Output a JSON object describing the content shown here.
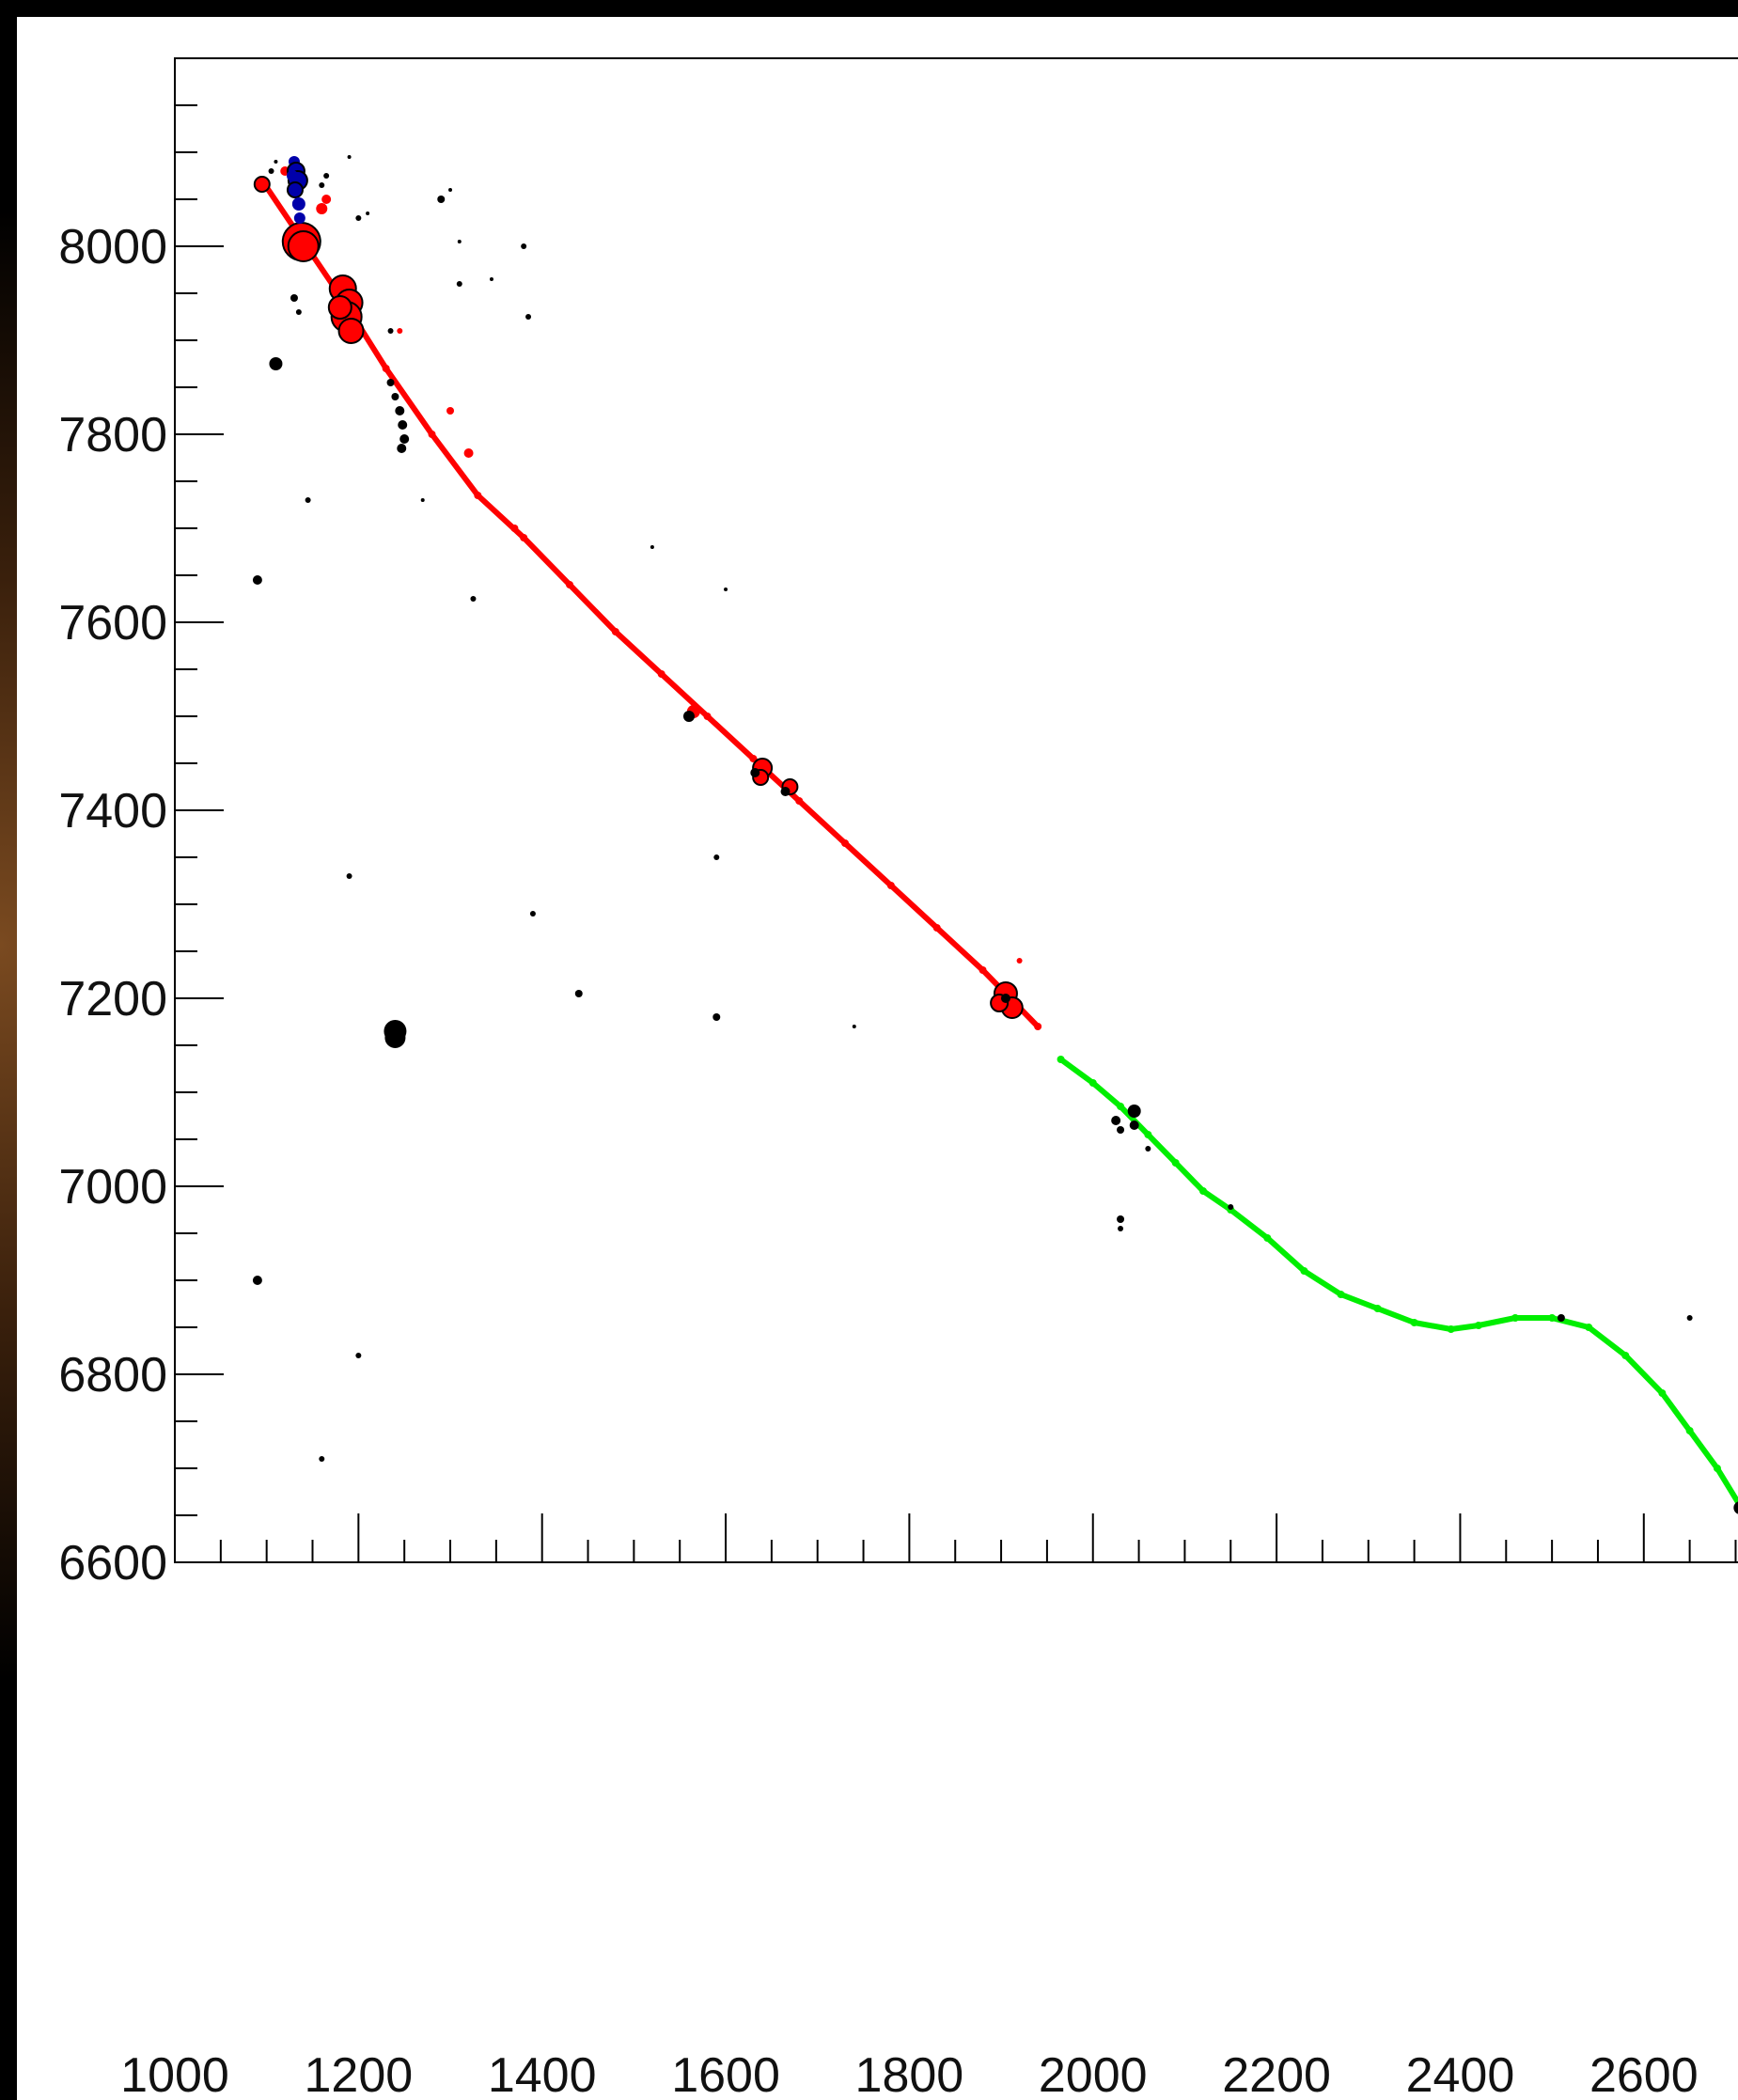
{
  "chart_data": {
    "type": "scatter",
    "title": "",
    "xlabel": "",
    "ylabel": "",
    "xlim": [
      1000,
      2720
    ],
    "ylim": [
      6600,
      8200
    ],
    "x_tick_labels": [
      "1000",
      "1200",
      "1400",
      "1600",
      "1800",
      "2000",
      "2200",
      "2400",
      "2600"
    ],
    "y_tick_labels": [
      "6600",
      "6800",
      "7000",
      "7200",
      "7400",
      "7600",
      "7800",
      "8000"
    ],
    "grid": false,
    "legend": "none",
    "colors": {
      "background": "#ffffff",
      "axes": "#000000",
      "track_red": "#ff0000",
      "track_green": "#00ee00",
      "hits_black": "#000000",
      "hits_blue": "#0000aa"
    },
    "series": [
      {
        "color": "red",
        "kind": "track",
        "points": [
          [
            1095,
            8070
          ],
          [
            1140,
            8005
          ],
          [
            1185,
            7940
          ],
          [
            1230,
            7870
          ],
          [
            1280,
            7800
          ],
          [
            1330,
            7735
          ],
          [
            1380,
            7690
          ],
          [
            1430,
            7640
          ],
          [
            1480,
            7590
          ],
          [
            1530,
            7545
          ],
          [
            1580,
            7500
          ],
          [
            1630,
            7455
          ],
          [
            1680,
            7410
          ],
          [
            1730,
            7365
          ],
          [
            1780,
            7320
          ],
          [
            1830,
            7275
          ],
          [
            1880,
            7230
          ],
          [
            1910,
            7200
          ],
          [
            1940,
            7170
          ]
        ]
      },
      {
        "color": "red",
        "kind": "clusters",
        "points": [
          [
            1095,
            8066,
            8
          ],
          [
            1120,
            8080,
            5
          ],
          [
            1138,
            8005,
            20
          ],
          [
            1140,
            8000,
            16
          ],
          [
            1183,
            7955,
            14
          ],
          [
            1190,
            7940,
            14
          ],
          [
            1187,
            7925,
            16
          ],
          [
            1192,
            7910,
            13
          ],
          [
            1180,
            7935,
            12
          ],
          [
            1565,
            7505,
            7
          ],
          [
            1640,
            7445,
            10
          ],
          [
            1638,
            7435,
            8
          ],
          [
            1670,
            7425,
            8
          ],
          [
            1905,
            7205,
            12
          ],
          [
            1912,
            7190,
            11
          ],
          [
            1898,
            7195,
            9
          ],
          [
            1160,
            8040,
            6
          ],
          [
            1165,
            8050,
            5
          ],
          [
            1300,
            7825,
            4
          ],
          [
            1920,
            7240,
            3
          ],
          [
            1245,
            7910,
            3
          ],
          [
            1320,
            7780,
            5
          ],
          [
            1370,
            7700,
            4
          ]
        ]
      },
      {
        "color": "green",
        "kind": "track",
        "points": [
          [
            1965,
            7135
          ],
          [
            2000,
            7110
          ],
          [
            2030,
            7085
          ],
          [
            2060,
            7055
          ],
          [
            2090,
            7025
          ],
          [
            2120,
            6995
          ],
          [
            2150,
            6975
          ],
          [
            2190,
            6945
          ],
          [
            2230,
            6910
          ],
          [
            2270,
            6885
          ],
          [
            2310,
            6870
          ],
          [
            2350,
            6855
          ],
          [
            2390,
            6848
          ],
          [
            2420,
            6852
          ],
          [
            2460,
            6860
          ],
          [
            2500,
            6860
          ],
          [
            2540,
            6850
          ],
          [
            2580,
            6820
          ],
          [
            2620,
            6780
          ],
          [
            2650,
            6740
          ],
          [
            2680,
            6700
          ],
          [
            2705,
            6660
          ]
        ]
      },
      {
        "color": "blue",
        "kind": "clusters",
        "points": [
          [
            1130,
            8090,
            6
          ],
          [
            1132,
            8080,
            9
          ],
          [
            1134,
            8070,
            10
          ],
          [
            1131,
            8060,
            8
          ],
          [
            1135,
            8045,
            7
          ],
          [
            1136,
            8030,
            6
          ],
          [
            1128,
            8075,
            6
          ]
        ]
      },
      {
        "color": "black",
        "kind": "hits",
        "points": [
          [
            1105,
            8080,
            3
          ],
          [
            1110,
            8090,
            2
          ],
          [
            1160,
            8065,
            3
          ],
          [
            1165,
            8075,
            3
          ],
          [
            1290,
            8050,
            4
          ],
          [
            1300,
            8060,
            2
          ],
          [
            1380,
            8000,
            3
          ],
          [
            1310,
            8005,
            2
          ],
          [
            1200,
            8030,
            3
          ],
          [
            1210,
            8035,
            2
          ],
          [
            1190,
            8095,
            2
          ],
          [
            1310,
            7960,
            3
          ],
          [
            1345,
            7965,
            2
          ],
          [
            1130,
            7945,
            4
          ],
          [
            1135,
            7930,
            3
          ],
          [
            1110,
            7875,
            7
          ],
          [
            1235,
            7855,
            4
          ],
          [
            1240,
            7840,
            4
          ],
          [
            1245,
            7825,
            5
          ],
          [
            1248,
            7810,
            5
          ],
          [
            1250,
            7795,
            5
          ],
          [
            1247,
            7785,
            5
          ],
          [
            1385,
            7925,
            3
          ],
          [
            1235,
            7910,
            3
          ],
          [
            1145,
            7730,
            3
          ],
          [
            1270,
            7730,
            2
          ],
          [
            1090,
            7645,
            5
          ],
          [
            1325,
            7625,
            3
          ],
          [
            1520,
            7680,
            2
          ],
          [
            1600,
            7635,
            2
          ],
          [
            1560,
            7500,
            6
          ],
          [
            1632,
            7440,
            5
          ],
          [
            1665,
            7420,
            5
          ],
          [
            1190,
            7330,
            3
          ],
          [
            1590,
            7350,
            3
          ],
          [
            1390,
            7290,
            3
          ],
          [
            1440,
            7205,
            4
          ],
          [
            1590,
            7180,
            4
          ],
          [
            1740,
            7170,
            2
          ],
          [
            1240,
            7165,
            12
          ],
          [
            1240,
            7158,
            11
          ],
          [
            2025,
            7070,
            5
          ],
          [
            2030,
            7060,
            4
          ],
          [
            2045,
            7080,
            7
          ],
          [
            2045,
            7065,
            5
          ],
          [
            2030,
            6965,
            4
          ],
          [
            2030,
            6955,
            3
          ],
          [
            2060,
            7040,
            3
          ],
          [
            1090,
            6900,
            5
          ],
          [
            1200,
            6820,
            3
          ],
          [
            1160,
            6710,
            3
          ],
          [
            1905,
            7200,
            5
          ],
          [
            2510,
            6860,
            4
          ],
          [
            2650,
            6860,
            3
          ],
          [
            2705,
            6658,
            7
          ],
          [
            2150,
            6978,
            3
          ]
        ]
      }
    ]
  }
}
